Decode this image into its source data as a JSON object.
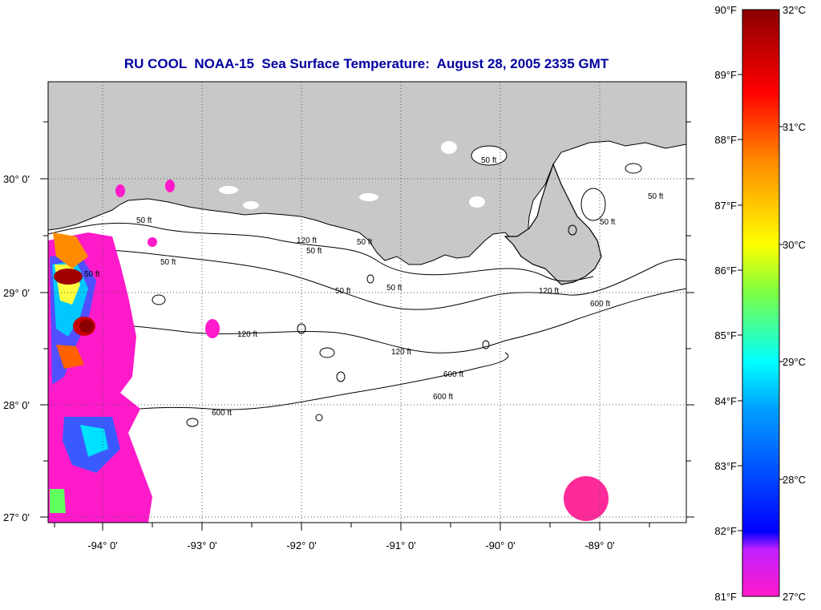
{
  "title": "RU COOL  NOAA-15  Sea Surface Temperature:  August 28, 2005 2335 GMT",
  "lat_labels": [
    "30° 0'",
    "29° 0'",
    "28° 0'",
    "27° 0'"
  ],
  "lon_labels": [
    "-94° 0'",
    "-93° 0'",
    "-92° 0'",
    "-91° 0'",
    "-90° 0'",
    "-89° 0'"
  ],
  "contour_labels": [
    "50 ft",
    "50 ft",
    "50 ft",
    "50 ft",
    "50 ft",
    "50 ft",
    "50 ft",
    "50 ft",
    "50 ft",
    "50 ft",
    "120 ft",
    "120 ft",
    "120 ft",
    "120 ft",
    "600 ft",
    "600 ft",
    "600 ft",
    "600 ft"
  ],
  "colorbar": {
    "fahrenheit_labels": [
      "90°F",
      "89°F",
      "88°F",
      "87°F",
      "86°F",
      "85°F",
      "84°F",
      "83°F",
      "82°F",
      "81°F"
    ],
    "celsius_labels": [
      "32°C",
      "31°C",
      "30°C",
      "29°C",
      "28°C",
      "27°C"
    ],
    "colors": [
      "#8b0000",
      "#ff0000",
      "#ff8c00",
      "#ffff00",
      "#7fff00",
      "#00ffff",
      "#0060ff",
      "#0000ff",
      "#8000ff",
      "#ff00ff"
    ]
  },
  "colors": {
    "land": "#c8c8c8",
    "sea": "#ffffff",
    "title": "#0000a0",
    "warm": "#ff1493"
  }
}
